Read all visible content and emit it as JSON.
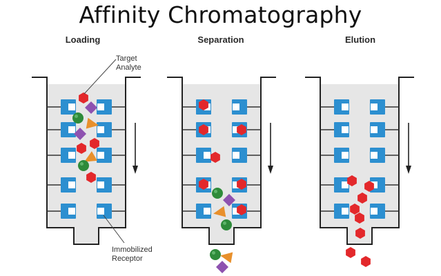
{
  "title": "Affinity Chromatography",
  "stages": [
    {
      "label": "Loading"
    },
    {
      "label": "Separation"
    },
    {
      "label": "Elution"
    }
  ],
  "callouts": {
    "target_analyte": [
      "Target",
      "Analyte"
    ],
    "immobilized_receptor": [
      "Immobilized",
      "Receptor"
    ]
  },
  "colors": {
    "column_fill": "#e6e6e6",
    "column_outline": "#222222",
    "receptor": "#2c8fd0",
    "target_analyte": "#e3282b",
    "impurity_green": "#2e8b3a",
    "impurity_orange": "#e8902c",
    "impurity_purple": "#8e52b0",
    "arrow": "#222222"
  }
}
